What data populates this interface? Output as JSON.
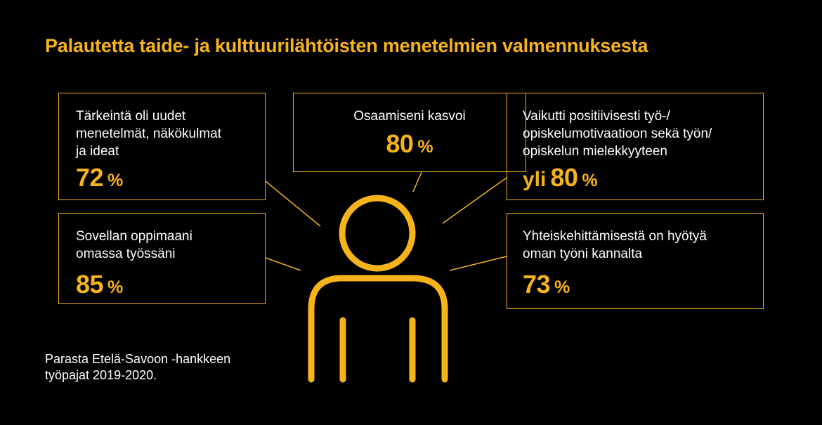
{
  "title": "Palautetta taide- ja kulttuurilähtöisten menetelmien valmennuksesta",
  "boxes": [
    {
      "lines": [
        "Tärkeintä oli uudet",
        "menetelmät, näkökulmat",
        "ja ideat"
      ],
      "value": "72",
      "unit": "%"
    },
    {
      "lines": [
        "Osaamiseni kasvoi"
      ],
      "value": "80",
      "unit": "%"
    },
    {
      "lines": [
        "Vaikutti positiivisesti työ-/",
        "opiskelumotivaatioon sekä työn/",
        "opiskelun mielekkyyteen"
      ],
      "prefix": "yli",
      "value": "80",
      "unit": "%"
    },
    {
      "lines": [
        "Sovellan oppimaani",
        "omassa työssäni"
      ],
      "value": "85",
      "unit": "%"
    },
    {
      "lines": [
        "Yhteiskehittämisestä on hyötyä",
        "oman työni kannalta"
      ],
      "value": "73",
      "unit": "%"
    }
  ],
  "source": {
    "lines": [
      "Parasta Etelä-Savoon -hankkeen",
      "työpajat 2019-2020."
    ]
  },
  "colors": {
    "accent": "#f7b31c",
    "background": "#000000",
    "text": "#ffffff"
  },
  "icons": {
    "figure": "person-outline-icon"
  }
}
